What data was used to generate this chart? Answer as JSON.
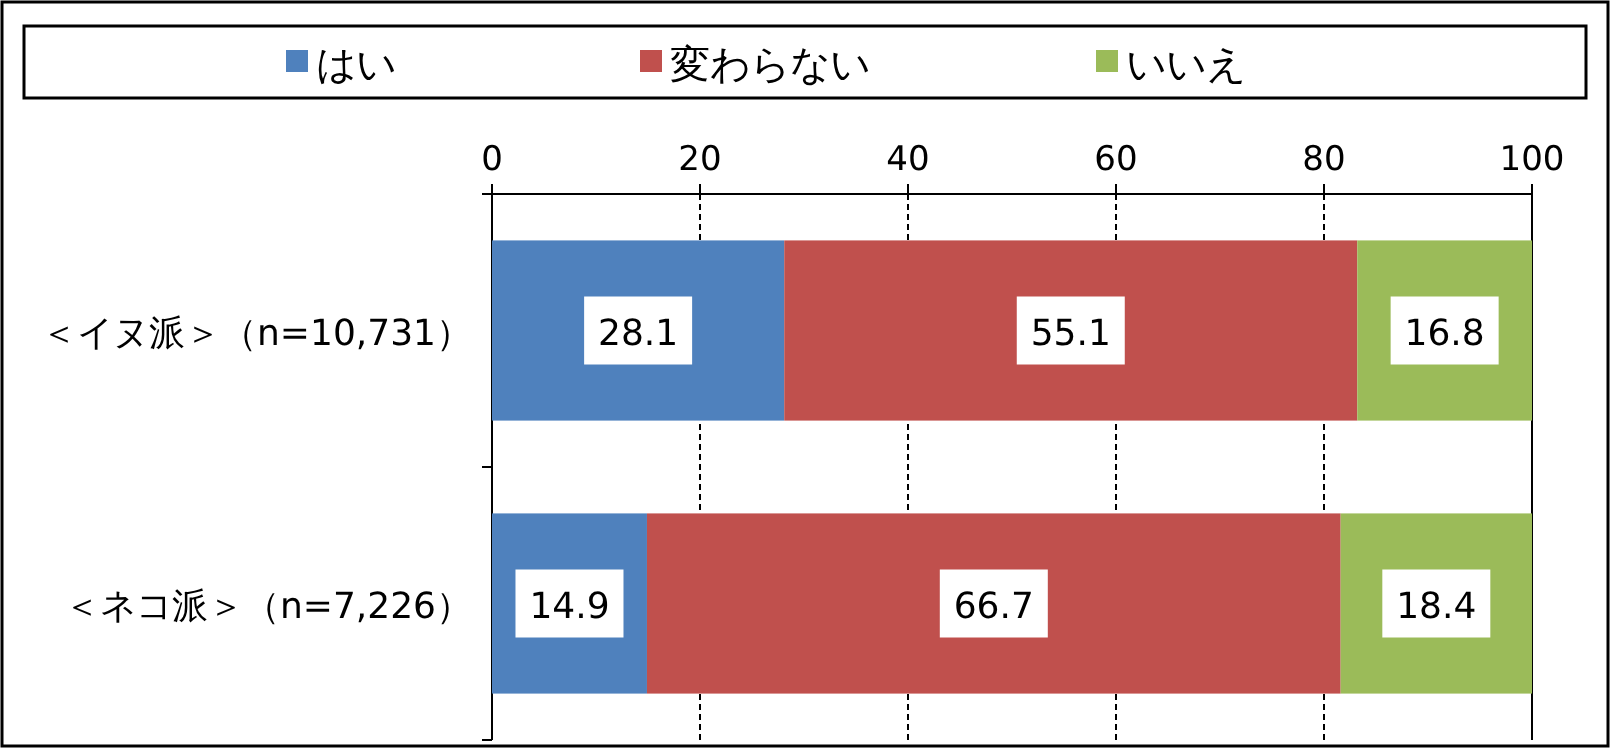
{
  "chart_data": {
    "type": "bar",
    "orientation": "horizontal",
    "stacked": true,
    "categories": [
      "＜イヌ派＞（n=10,731）",
      "＜ネコ派＞（n=7,226）"
    ],
    "series": [
      {
        "name": "はい",
        "color": "#4f81bd",
        "values": [
          28.1,
          14.9
        ]
      },
      {
        "name": "変わらない",
        "color": "#c0504d",
        "values": [
          55.1,
          66.7
        ]
      },
      {
        "name": "いいえ",
        "color": "#9bbb59",
        "values": [
          16.8,
          18.4
        ]
      }
    ],
    "xlim": [
      0,
      100
    ],
    "xticks": [
      0,
      20,
      40,
      60,
      80,
      100
    ],
    "grid": "x",
    "legend": "top",
    "data_labels": true
  }
}
